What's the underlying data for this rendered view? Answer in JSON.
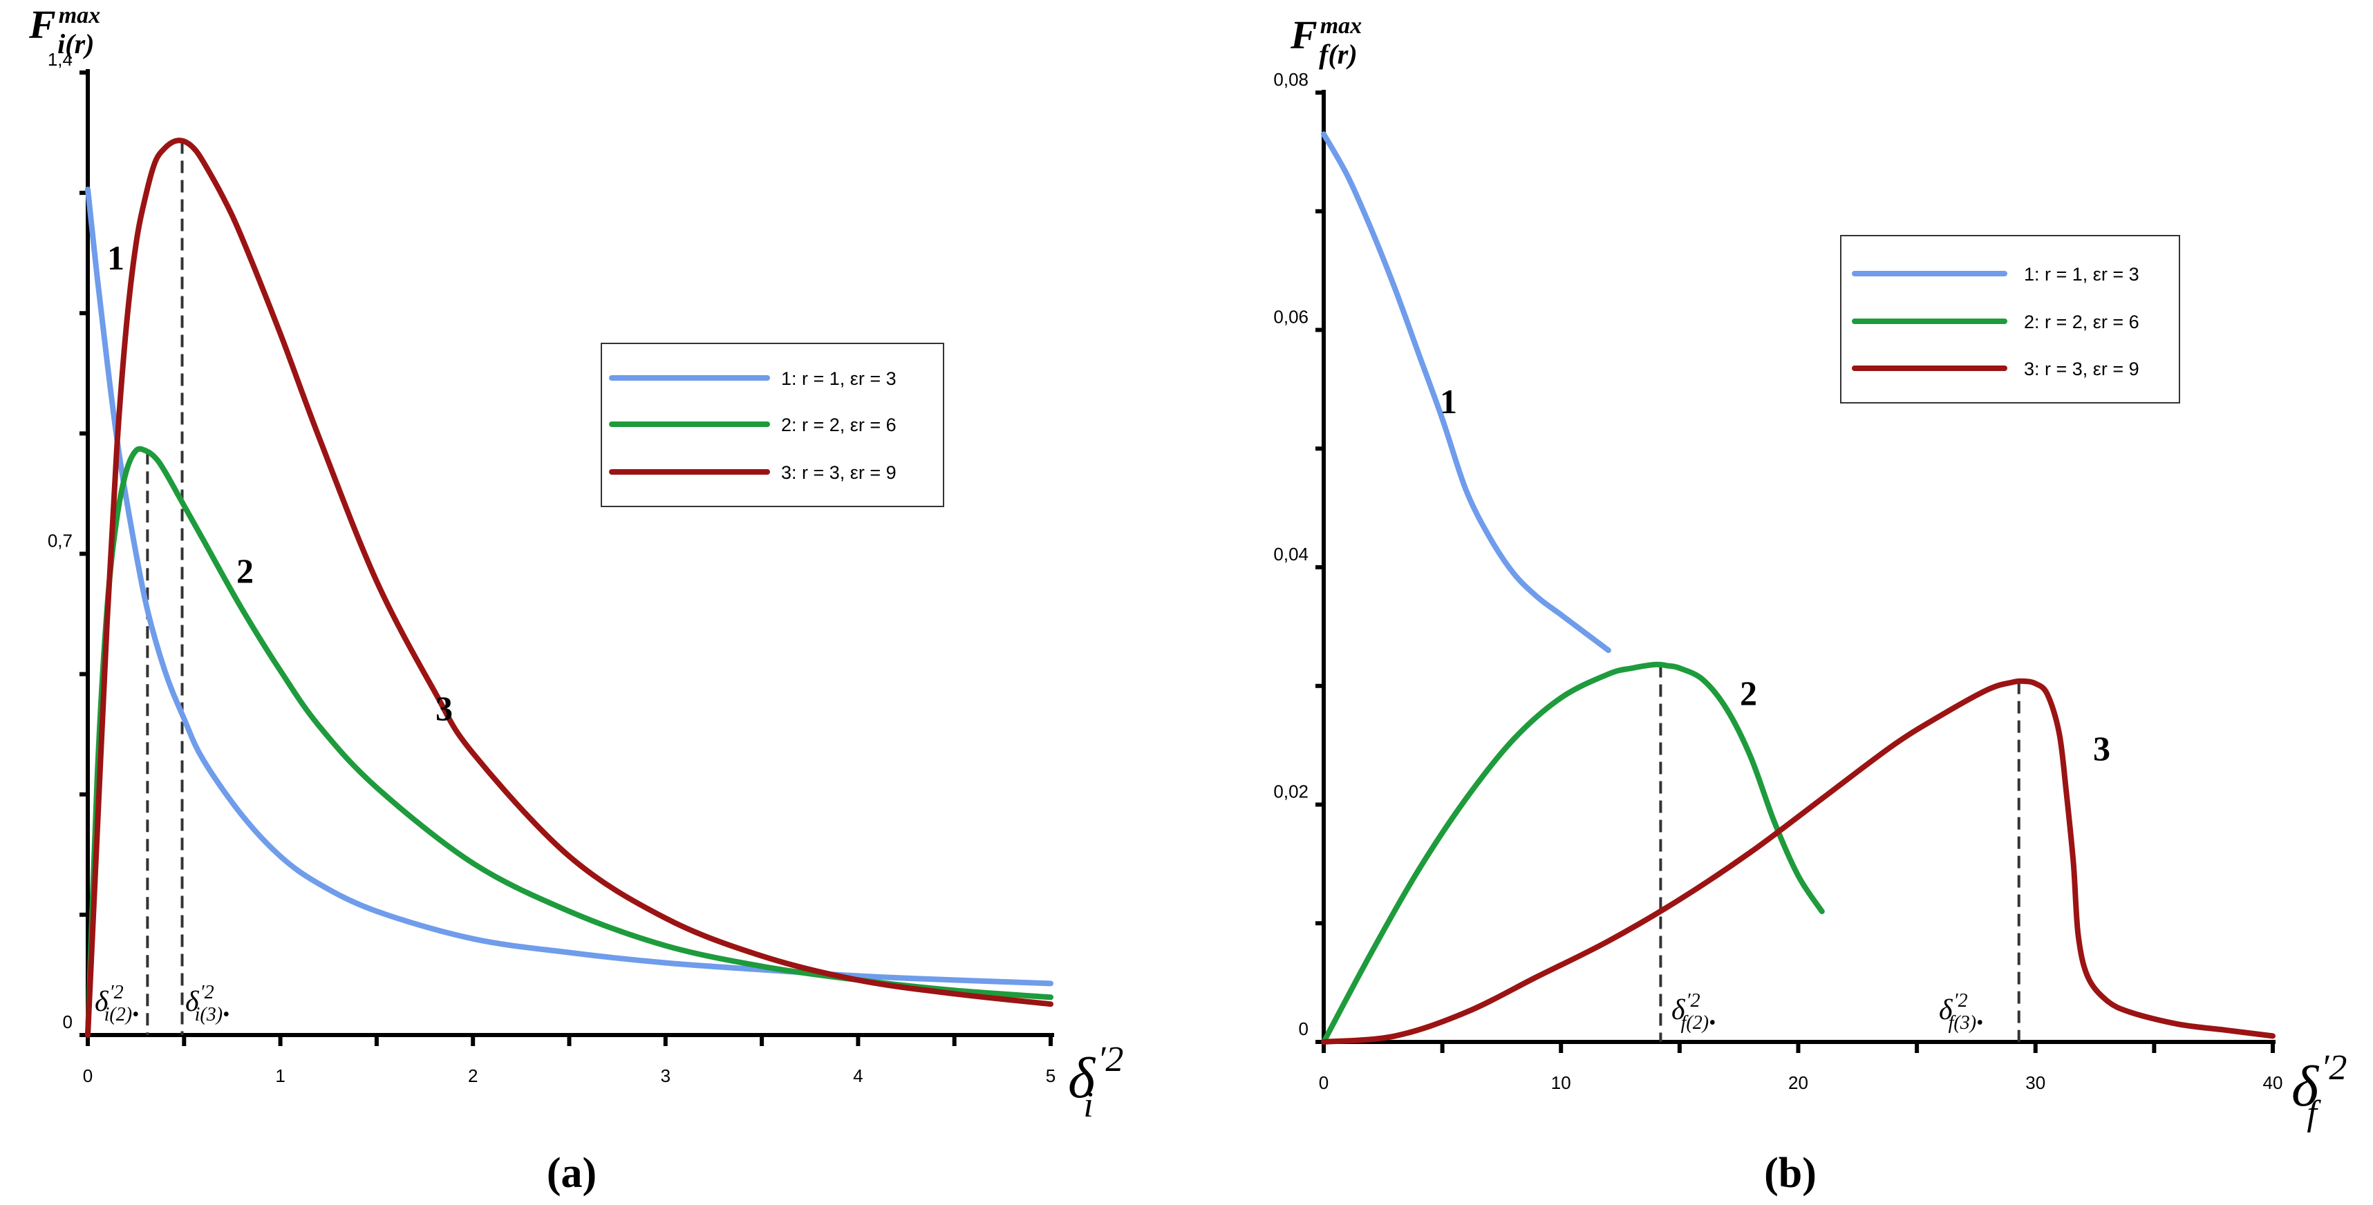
{
  "chart_data": [
    {
      "type": "line",
      "panel": "a",
      "caption": "(a)",
      "ylabel": {
        "main": "F",
        "sup": "max",
        "sub": "i(r)"
      },
      "xlabel": {
        "main": "δ",
        "sup": "′2",
        "sub": "i"
      },
      "xlim": [
        0,
        5
      ],
      "ylim": [
        0,
        1.4
      ],
      "x_ticks": [
        "0",
        "1",
        "2",
        "3",
        "4",
        "5"
      ],
      "y_ticks": [
        {
          "v": 0,
          "t": "0"
        },
        {
          "v": 0.7,
          "t": "0,7"
        },
        {
          "v": 1.4,
          "t": "1,4"
        }
      ],
      "legend": [
        "1: r = 1,  εr = 3",
        "2: r = 2,  εr = 6",
        "3: r = 3,  εr = 9"
      ],
      "curve_labels": [
        "1",
        "2",
        "3"
      ],
      "markers": [
        {
          "x": 0.31,
          "sym": "δ",
          "sup": "′2",
          "sub": "i(2)•"
        },
        {
          "x": 0.49,
          "sym": "δ",
          "sup": "′2",
          "sub": "i(3)•"
        }
      ],
      "series": [
        {
          "name": "1: r = 1, εr = 3",
          "color": "#6f9ceb",
          "x": [
            0,
            0.05,
            0.1,
            0.15,
            0.2,
            0.3,
            0.4,
            0.5,
            0.6,
            0.8,
            1.0,
            1.2,
            1.5,
            2.0,
            2.5,
            3.0,
            3.5,
            4.0,
            4.5,
            5.0
          ],
          "y": [
            1.23,
            1.1,
            0.98,
            0.87,
            0.78,
            0.63,
            0.53,
            0.46,
            0.4,
            0.32,
            0.26,
            0.22,
            0.18,
            0.14,
            0.12,
            0.105,
            0.095,
            0.086,
            0.08,
            0.075
          ]
        },
        {
          "name": "2: r = 2, εr = 6",
          "color": "#1e9b3c",
          "x": [
            0,
            0.05,
            0.1,
            0.15,
            0.2,
            0.25,
            0.3,
            0.35,
            0.4,
            0.5,
            0.6,
            0.8,
            1.0,
            1.2,
            1.5,
            2.0,
            2.5,
            3.0,
            3.5,
            4.0,
            4.5,
            5.0
          ],
          "y": [
            0,
            0.38,
            0.62,
            0.75,
            0.82,
            0.85,
            0.85,
            0.84,
            0.82,
            0.77,
            0.72,
            0.62,
            0.53,
            0.45,
            0.36,
            0.25,
            0.18,
            0.13,
            0.1,
            0.08,
            0.065,
            0.055
          ]
        },
        {
          "name": "3: r = 3, εr = 9",
          "color": "#9b1313",
          "x": [
            0,
            0.05,
            0.1,
            0.15,
            0.2,
            0.25,
            0.3,
            0.35,
            0.4,
            0.45,
            0.5,
            0.55,
            0.6,
            0.7,
            0.8,
            1.0,
            1.2,
            1.5,
            1.8,
            2.0,
            2.5,
            3.0,
            3.5,
            4.0,
            4.5,
            5.0
          ],
          "y": [
            0,
            0.3,
            0.6,
            0.85,
            1.03,
            1.15,
            1.22,
            1.27,
            1.29,
            1.3,
            1.3,
            1.29,
            1.27,
            1.22,
            1.16,
            1.02,
            0.87,
            0.66,
            0.5,
            0.41,
            0.26,
            0.17,
            0.115,
            0.08,
            0.06,
            0.045
          ]
        }
      ]
    },
    {
      "type": "line",
      "panel": "b",
      "caption": "(b)",
      "ylabel": {
        "main": "F",
        "sup": "max",
        "sub": "f(r)"
      },
      "xlabel": {
        "main": "δ",
        "sup": "′2",
        "sub": "f"
      },
      "xlim": [
        0,
        40
      ],
      "ylim": [
        0,
        0.08
      ],
      "x_ticks": [
        "0",
        "10",
        "20",
        "30",
        "40"
      ],
      "y_ticks": [
        {
          "v": 0,
          "t": "0"
        },
        {
          "v": 0.02,
          "t": "0,02"
        },
        {
          "v": 0.04,
          "t": "0,04"
        },
        {
          "v": 0.06,
          "t": "0,06"
        },
        {
          "v": 0.08,
          "t": "0,08"
        }
      ],
      "legend": [
        "1: r = 1,  εr = 3",
        "2: r = 2,  εr = 6",
        "3: r = 3,  εr = 9"
      ],
      "curve_labels": [
        "1",
        "2",
        "3"
      ],
      "markers": [
        {
          "x": 14.2,
          "sym": "δ",
          "sup": "′2",
          "sub": "f(2)•"
        },
        {
          "x": 29.3,
          "sym": "δ",
          "sup": "′2",
          "sub": "f(3)•"
        }
      ],
      "series": [
        {
          "name": "1: r = 1, εr = 3",
          "color": "#6f9ceb",
          "x": [
            0,
            1,
            2,
            3,
            4,
            5,
            6,
            7,
            8,
            9,
            10,
            11,
            12
          ],
          "y": [
            0.0765,
            0.073,
            0.0685,
            0.0635,
            0.058,
            0.0525,
            0.0465,
            0.0425,
            0.0395,
            0.0375,
            0.036,
            0.0345,
            0.033
          ]
        },
        {
          "name": "2: r = 2, εr = 6",
          "color": "#1e9b3c",
          "x": [
            0,
            2,
            4,
            6,
            8,
            10,
            12,
            13,
            14,
            14.5,
            15,
            16,
            17,
            18,
            19,
            20,
            21
          ],
          "y": [
            0,
            0.0075,
            0.0145,
            0.0205,
            0.0255,
            0.029,
            0.031,
            0.0315,
            0.0318,
            0.0317,
            0.0315,
            0.0305,
            0.028,
            0.024,
            0.0185,
            0.014,
            0.011
          ]
        },
        {
          "name": "3: r = 3, εr = 9",
          "color": "#9b1313",
          "x": [
            0,
            3,
            6,
            9,
            12,
            15,
            18,
            21,
            24,
            26,
            28,
            29,
            29.5,
            30,
            30.5,
            31,
            31.3,
            31.6,
            31.8,
            32.2,
            33,
            34,
            36,
            38,
            40
          ],
          "y": [
            0,
            0.0005,
            0.0025,
            0.0055,
            0.0085,
            0.012,
            0.016,
            0.0205,
            0.025,
            0.0275,
            0.0297,
            0.0303,
            0.0304,
            0.0302,
            0.0293,
            0.026,
            0.021,
            0.015,
            0.009,
            0.0055,
            0.0035,
            0.0025,
            0.0015,
            0.001,
            0.0005
          ]
        }
      ]
    }
  ]
}
